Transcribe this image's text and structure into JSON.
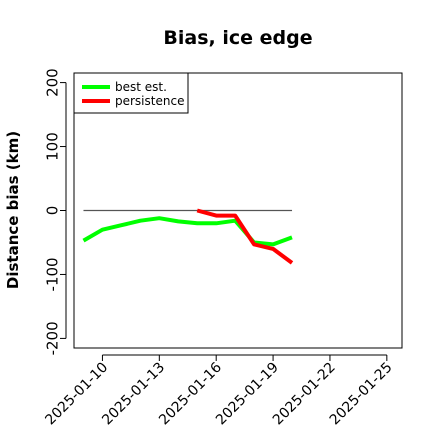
{
  "chart_data": {
    "type": "line",
    "title": "Bias, ice edge",
    "xlabel": "",
    "ylabel": "Distance bias (km)",
    "x_dates": [
      "2025-01-09",
      "2025-01-10",
      "2025-01-11",
      "2025-01-12",
      "2025-01-13",
      "2025-01-14",
      "2025-01-15",
      "2025-01-16",
      "2025-01-17",
      "2025-01-18",
      "2025-01-19",
      "2025-01-20"
    ],
    "xlim": [
      "2025-01-08.5",
      "2025-01-25.8"
    ],
    "ylim": [
      -215,
      215
    ],
    "xticks": [
      "2025-01-10",
      "2025-01-13",
      "2025-01-16",
      "2025-01-19",
      "2025-01-22",
      "2025-01-25"
    ],
    "yticks": [
      -200,
      -100,
      0,
      100,
      200
    ],
    "series": [
      {
        "name": "best est.",
        "color": "#00ff00",
        "x": [
          "2025-01-09",
          "2025-01-10",
          "2025-01-11",
          "2025-01-12",
          "2025-01-13",
          "2025-01-14",
          "2025-01-15",
          "2025-01-16",
          "2025-01-17",
          "2025-01-18",
          "2025-01-19",
          "2025-01-20"
        ],
        "values": [
          -47,
          -30,
          -23,
          -16,
          -12,
          -17,
          -20,
          -20,
          -16,
          -50,
          -53,
          -42
        ]
      },
      {
        "name": "persistence",
        "color": "#ff0000",
        "x": [
          "2025-01-15",
          "2025-01-16",
          "2025-01-17",
          "2025-01-18",
          "2025-01-19",
          "2025-01-20"
        ],
        "values": [
          0,
          -8,
          -8,
          -53,
          -60,
          -82
        ]
      }
    ],
    "reference_line": {
      "y": 0,
      "x_from": "2025-01-09",
      "x_to": "2025-01-20",
      "color": "#555555"
    },
    "legend": {
      "position": "top-left"
    },
    "grid": false
  }
}
